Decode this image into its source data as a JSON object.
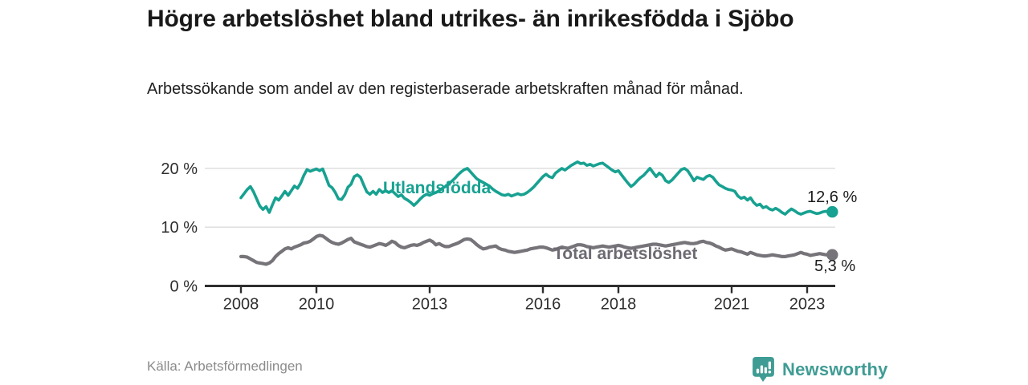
{
  "chart_data": {
    "type": "line",
    "title": "Högre arbetslöshet bland utrikes- än inrikesfödda i Sjöbo",
    "subtitle": "Arbetssökande som andel av den registerbaserade arbetskraften månad för månad.",
    "x_start_year": 2008,
    "x_points_per_year": 12,
    "x_ticks": [
      2008,
      2010,
      2013,
      2016,
      2018,
      2021,
      2023
    ],
    "y_ticks": [
      0,
      10,
      20
    ],
    "y_tick_labels": [
      "0 %",
      "10 %",
      "20 %"
    ],
    "ylim": [
      0,
      22.5
    ],
    "xlim": [
      2007.0,
      2023.75
    ],
    "grid": "horizontal",
    "legend_position": "inline-labels",
    "series": [
      {
        "id": "utlandsfodda",
        "name": "Utlandsfödda",
        "color": "#17a191",
        "end_label": "12,6 %",
        "end_value": 12.6,
        "values": [
          15.0,
          15.7,
          16.4,
          16.9,
          16.0,
          14.8,
          13.6,
          13.0,
          13.5,
          12.5,
          13.8,
          15.0,
          14.6,
          15.3,
          16.1,
          15.4,
          16.2,
          17.0,
          16.6,
          17.5,
          18.8,
          19.8,
          19.5,
          19.7,
          19.9,
          19.6,
          19.9,
          18.5,
          17.1,
          16.7,
          15.9,
          14.8,
          14.7,
          15.5,
          16.8,
          17.3,
          18.6,
          18.9,
          18.5,
          17.2,
          16.0,
          15.6,
          16.1,
          15.6,
          16.4,
          15.9,
          16.2,
          15.9,
          16.2,
          15.7,
          15.2,
          15.5,
          14.9,
          14.6,
          14.2,
          13.7,
          14.2,
          14.8,
          15.3,
          15.6,
          15.4,
          15.7,
          15.9,
          16.2,
          16.6,
          16.9,
          17.3,
          17.8,
          18.3,
          18.9,
          19.4,
          19.8,
          20.0,
          19.4,
          18.8,
          18.2,
          17.9,
          17.6,
          17.3,
          17.0,
          16.5,
          16.1,
          15.8,
          15.5,
          15.4,
          15.6,
          15.3,
          15.5,
          15.7,
          15.5,
          15.6,
          15.9,
          16.3,
          16.8,
          17.4,
          18.0,
          18.6,
          19.0,
          18.6,
          18.4,
          19.2,
          19.6,
          20.0,
          19.7,
          20.1,
          20.5,
          20.8,
          21.1,
          20.8,
          20.9,
          20.5,
          20.7,
          20.4,
          20.6,
          20.8,
          20.9,
          20.5,
          20.1,
          19.7,
          19.4,
          19.6,
          18.9,
          18.2,
          17.5,
          16.9,
          17.3,
          17.9,
          18.4,
          18.8,
          19.4,
          20.0,
          19.3,
          18.6,
          19.2,
          18.8,
          17.9,
          17.6,
          18.0,
          18.6,
          19.2,
          19.8,
          20.0,
          19.6,
          18.8,
          17.9,
          18.5,
          18.3,
          18.1,
          18.6,
          18.8,
          18.5,
          17.8,
          17.2,
          16.9,
          16.6,
          16.4,
          16.3,
          16.1,
          15.3,
          14.9,
          15.1,
          14.6,
          15.0,
          14.2,
          13.7,
          13.9,
          13.3,
          13.5,
          13.1,
          12.9,
          13.2,
          12.9,
          12.5,
          12.2,
          12.7,
          13.1,
          12.8,
          12.4,
          12.2,
          12.4,
          12.6,
          12.7,
          12.5,
          12.3,
          12.4,
          12.6,
          12.7,
          12.5,
          12.6
        ]
      },
      {
        "id": "total",
        "name": "Total arbetslöshet",
        "color": "#767379",
        "end_label": "5,3 %",
        "end_value": 5.3,
        "values": [
          5.0,
          5.0,
          4.9,
          4.6,
          4.3,
          4.0,
          3.9,
          3.8,
          3.7,
          3.9,
          4.3,
          5.0,
          5.5,
          5.9,
          6.3,
          6.5,
          6.3,
          6.6,
          6.8,
          7.0,
          7.3,
          7.4,
          7.6,
          8.0,
          8.4,
          8.6,
          8.5,
          8.1,
          7.7,
          7.4,
          7.2,
          7.1,
          7.3,
          7.6,
          7.9,
          8.1,
          7.5,
          7.3,
          7.1,
          6.9,
          6.7,
          6.6,
          6.8,
          7.0,
          7.2,
          7.1,
          6.9,
          7.2,
          7.6,
          7.4,
          6.9,
          6.6,
          6.5,
          6.7,
          6.9,
          7.0,
          6.9,
          7.1,
          7.4,
          7.6,
          7.8,
          7.5,
          7.0,
          7.2,
          6.9,
          6.7,
          6.7,
          6.9,
          7.1,
          7.3,
          7.6,
          7.9,
          8.0,
          7.9,
          7.5,
          7.0,
          6.6,
          6.3,
          6.4,
          6.6,
          6.7,
          6.8,
          6.4,
          6.2,
          6.1,
          5.9,
          5.8,
          5.7,
          5.8,
          5.9,
          6.0,
          6.1,
          6.3,
          6.4,
          6.5,
          6.6,
          6.6,
          6.5,
          6.3,
          6.1,
          6.2,
          6.4,
          6.6,
          6.5,
          6.4,
          6.6,
          6.8,
          7.0,
          7.0,
          6.9,
          6.7,
          6.6,
          6.5,
          6.6,
          6.7,
          6.8,
          6.7,
          6.6,
          6.7,
          6.8,
          6.9,
          6.8,
          6.6,
          6.5,
          6.4,
          6.5,
          6.6,
          6.7,
          6.8,
          6.9,
          7.0,
          7.1,
          7.1,
          7.0,
          6.9,
          6.8,
          6.9,
          7.0,
          7.1,
          7.2,
          7.3,
          7.4,
          7.3,
          7.2,
          7.2,
          7.3,
          7.5,
          7.6,
          7.4,
          7.3,
          7.1,
          6.8,
          6.6,
          6.3,
          6.1,
          6.2,
          6.3,
          6.1,
          5.9,
          5.8,
          5.6,
          5.4,
          5.7,
          5.5,
          5.3,
          5.2,
          5.1,
          5.1,
          5.2,
          5.3,
          5.2,
          5.1,
          5.0,
          5.0,
          5.1,
          5.2,
          5.3,
          5.5,
          5.7,
          5.5,
          5.4,
          5.2,
          5.3,
          5.4,
          5.5,
          5.4,
          5.3,
          5.4,
          5.3
        ]
      }
    ]
  },
  "source": "Källa: Arbetsförmedlingen",
  "branding": {
    "wordmark": "Newsworthy",
    "logo_icon": "bar-chart-speech-bubble",
    "brand_color": "#3f9c94"
  },
  "colors": {
    "foreign_born_line": "#17a191",
    "total_line": "#767379",
    "axis": "#2e2e2e",
    "gridline": "#dcdcdc",
    "title_text": "#191919",
    "muted_text": "#8b8b8b"
  }
}
